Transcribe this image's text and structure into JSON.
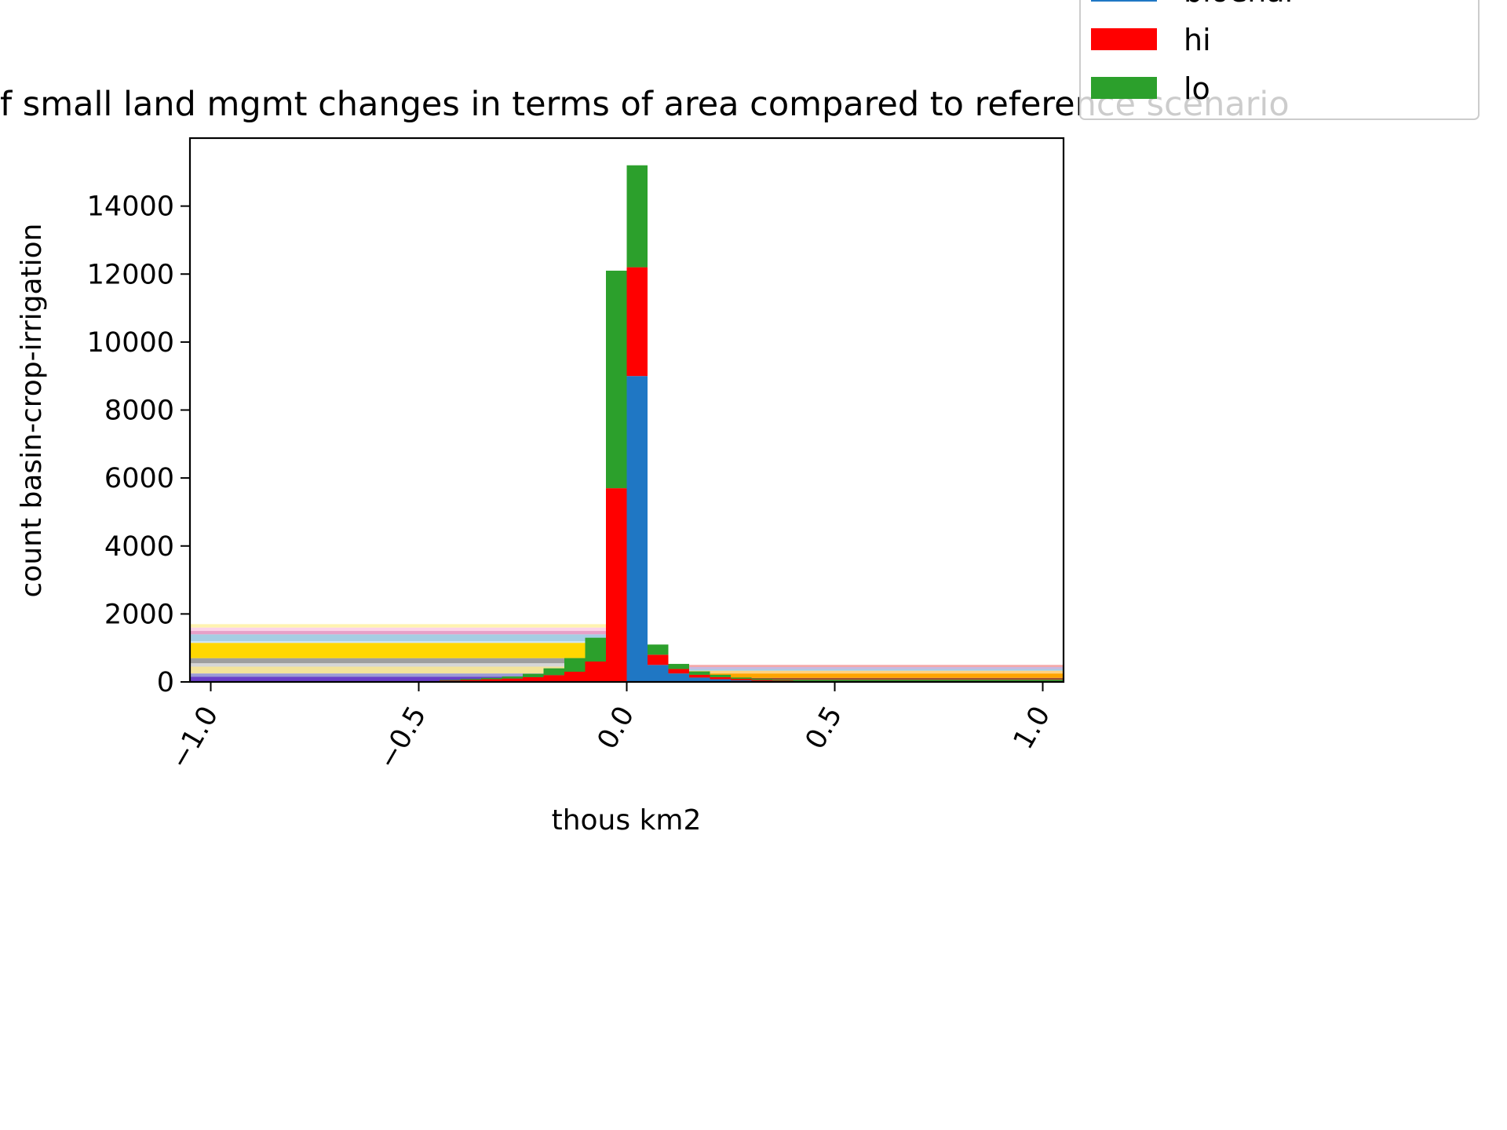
{
  "chart_data": {
    "type": "bar",
    "stacked": true,
    "title": "f small land mgmt changes in terms of area compared to reference scenario",
    "xlabel": "thous km2",
    "ylabel": "count basin-crop-irrigation",
    "xlim": [
      -1.05,
      1.05
    ],
    "ylim": [
      0,
      16000
    ],
    "xticks": [
      -1.0,
      -0.5,
      0.0,
      0.5,
      1.0
    ],
    "xtick_labels": [
      "−1.0",
      "−0.5",
      "0.0",
      "0.5",
      "1.0"
    ],
    "yticks": [
      0,
      2000,
      4000,
      6000,
      8000,
      10000,
      12000,
      14000
    ],
    "ytick_labels": [
      "0",
      "2000",
      "4000",
      "6000",
      "8000",
      "10000",
      "12000",
      "14000"
    ],
    "legend_position": "top-right",
    "legend": [
      {
        "label": "bioenal",
        "color": "#1f77c4"
      },
      {
        "label": "hi",
        "color": "#ff0000"
      },
      {
        "label": "lo",
        "color": "#2ca02c"
      }
    ],
    "bin_edges": [
      -0.45,
      -0.4,
      -0.35,
      -0.3,
      -0.25,
      -0.2,
      -0.15,
      -0.1,
      -0.05,
      0.0,
      0.05,
      0.1,
      0.15,
      0.2,
      0.25,
      0.3,
      0.35,
      0.4,
      0.45
    ],
    "series": [
      {
        "name": "bioenal",
        "color": "#1f77c4",
        "values": [
          0,
          0,
          0,
          0,
          0,
          0,
          0,
          0,
          0,
          9000,
          500,
          250,
          130,
          80,
          50,
          30,
          20,
          10
        ]
      },
      {
        "name": "hi",
        "color": "#ff0000",
        "values": [
          40,
          60,
          80,
          100,
          140,
          200,
          300,
          600,
          5700,
          3200,
          300,
          130,
          80,
          60,
          40,
          30,
          20,
          10
        ]
      },
      {
        "name": "lo",
        "color": "#2ca02c",
        "values": [
          20,
          30,
          40,
          60,
          100,
          200,
          400,
          700,
          6400,
          3000,
          300,
          150,
          100,
          70,
          40,
          30,
          20,
          10
        ]
      }
    ],
    "overflow_bands_left": {
      "x_range": [
        -1.05,
        -0.05
      ],
      "bands": [
        {
          "y0": 0,
          "y1": 150,
          "color": "#6a3fc8"
        },
        {
          "y0": 150,
          "y1": 250,
          "color": "#9b9bd6"
        },
        {
          "y0": 250,
          "y1": 450,
          "color": "#f3e39a"
        },
        {
          "y0": 450,
          "y1": 550,
          "color": "#d6d6d6"
        },
        {
          "y0": 550,
          "y1": 700,
          "color": "#9e9e9e"
        },
        {
          "y0": 700,
          "y1": 1150,
          "color": "#ffd700"
        },
        {
          "y0": 1150,
          "y1": 1200,
          "color": "#cfe6f2"
        },
        {
          "y0": 1200,
          "y1": 1400,
          "color": "#a6cee3"
        },
        {
          "y0": 1400,
          "y1": 1500,
          "color": "#e7a0c8"
        },
        {
          "y0": 1500,
          "y1": 1600,
          "color": "#fbd3e9"
        },
        {
          "y0": 1600,
          "y1": 1700,
          "color": "#fff3b0"
        }
      ]
    },
    "overflow_bands_right": {
      "x_range": [
        0.1,
        1.05
      ],
      "bands": [
        {
          "y0": 0,
          "y1": 60,
          "color": "#2ca02c"
        },
        {
          "y0": 60,
          "y1": 120,
          "color": "#a0522d"
        },
        {
          "y0": 120,
          "y1": 250,
          "color": "#ffa500"
        },
        {
          "y0": 250,
          "y1": 330,
          "color": "#ffd27f"
        },
        {
          "y0": 330,
          "y1": 380,
          "color": "#a6cee3"
        },
        {
          "y0": 380,
          "y1": 440,
          "color": "#c9b7e0"
        },
        {
          "y0": 440,
          "y1": 500,
          "color": "#f4a6a6"
        }
      ]
    }
  }
}
